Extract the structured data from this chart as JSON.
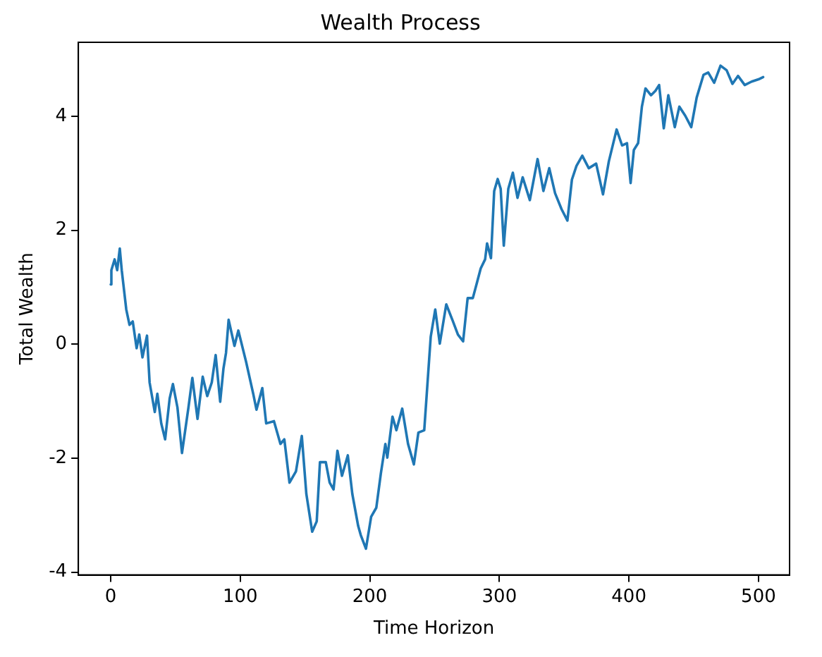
{
  "chart_data": {
    "type": "line",
    "title": "Wealth Process",
    "xlabel": "Time Horizon",
    "ylabel": "Total Wealth",
    "xlim": [
      -25,
      524
    ],
    "ylim": [
      -4.05,
      5.3
    ],
    "xticks": [
      0,
      100,
      200,
      300,
      400,
      500
    ],
    "yticks": [
      -4,
      -2,
      0,
      2,
      4
    ],
    "grid": false,
    "legend": false,
    "marker": "none",
    "line_style": "solid",
    "series": [
      {
        "color": "#1f77b4",
        "x": [
          0,
          0.5,
          3,
          5,
          7,
          8.5,
          12,
          14.5,
          17,
          20,
          22,
          24.5,
          28,
          30,
          34,
          36,
          39,
          42,
          45.5,
          48,
          51.5,
          55,
          60,
          63,
          67,
          71,
          74.5,
          78,
          81,
          84.5,
          87,
          89,
          91,
          95.5,
          98.5,
          104.5,
          110,
          112.5,
          117,
          120,
          126,
          131,
          134,
          138,
          143,
          147.5,
          151,
          155.5,
          159,
          161.5,
          166,
          169,
          172,
          175,
          178.5,
          183,
          186.5,
          191,
          193,
          197,
          201,
          205,
          208.5,
          212,
          213.5,
          217.5,
          220.5,
          225,
          229.5,
          234,
          237.5,
          242,
          247,
          250.5,
          254,
          259,
          264,
          268,
          272,
          275.5,
          279.5,
          282.8,
          285.6,
          289,
          290.5,
          293.5,
          296,
          298.7,
          301,
          303.4,
          306.9,
          310.4,
          314,
          318,
          323.5,
          329.5,
          334,
          338.5,
          343,
          348,
          352.5,
          356,
          359.5,
          364,
          369,
          374.7,
          380,
          384.5,
          390.5,
          394.7,
          398.5,
          401.3,
          403.8,
          407.1,
          410,
          412.8,
          417,
          420.5,
          423.3,
          426.9,
          430.4,
          435.4,
          438.9,
          443.5,
          448.1,
          452.3,
          457.6,
          461.2,
          465.8,
          470.7,
          475.4,
          479.9,
          484.2,
          489.4,
          494.7,
          500,
          503.6
        ],
        "values": [
          1.05,
          1.3,
          1.49,
          1.3,
          1.68,
          1.3,
          0.61,
          0.34,
          0.4,
          -0.07,
          0.17,
          -0.23,
          0.15,
          -0.67,
          -1.19,
          -0.87,
          -1.39,
          -1.67,
          -0.95,
          -0.7,
          -1.11,
          -1.91,
          -1.11,
          -0.59,
          -1.31,
          -0.57,
          -0.91,
          -0.67,
          -0.19,
          -1.01,
          -0.43,
          -0.15,
          0.43,
          -0.03,
          0.24,
          -0.31,
          -0.87,
          -1.15,
          -0.77,
          -1.39,
          -1.35,
          -1.75,
          -1.67,
          -2.43,
          -2.23,
          -1.61,
          -2.63,
          -3.29,
          -3.11,
          -2.07,
          -2.07,
          -2.43,
          -2.55,
          -1.87,
          -2.31,
          -1.95,
          -2.63,
          -3.19,
          -3.35,
          -3.59,
          -3.03,
          -2.87,
          -2.27,
          -1.75,
          -1.99,
          -1.27,
          -1.51,
          -1.13,
          -1.75,
          -2.11,
          -1.55,
          -1.51,
          0.13,
          0.61,
          0.01,
          0.7,
          0.41,
          0.17,
          0.05,
          0.81,
          0.81,
          1.09,
          1.33,
          1.49,
          1.77,
          1.51,
          2.69,
          2.9,
          2.73,
          1.73,
          2.73,
          3.01,
          2.57,
          2.93,
          2.53,
          3.25,
          2.69,
          3.09,
          2.65,
          2.37,
          2.17,
          2.89,
          3.13,
          3.31,
          3.09,
          3.17,
          2.63,
          3.21,
          3.77,
          3.49,
          3.53,
          2.83,
          3.41,
          3.53,
          4.17,
          4.49,
          4.37,
          4.45,
          4.55,
          3.79,
          4.37,
          3.81,
          4.17,
          4.01,
          3.81,
          4.33,
          4.73,
          4.77,
          4.59,
          4.89,
          4.81,
          4.57,
          4.71,
          4.55,
          4.61,
          4.65,
          4.69
        ]
      }
    ]
  }
}
